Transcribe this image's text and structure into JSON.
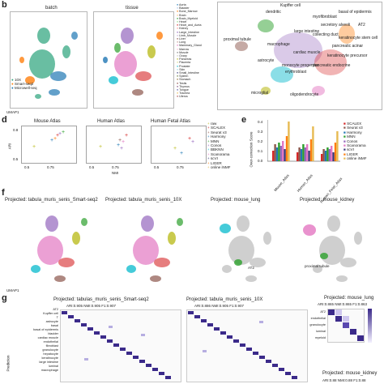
{
  "panel_b": {
    "letter": "b",
    "titles": [
      "batch",
      "tissue"
    ],
    "batch_legend": [
      "10X",
      "Smart-seq2",
      "Microwell-seq"
    ],
    "tissue_legend": [
      "Aorta",
      "Bladder",
      "Bone_Marrow",
      "Brain",
      "Brain_Myeloid",
      "Heart",
      "Heart_and_Aorta",
      "Kidney",
      "Large_Intestine",
      "Limb_Muscle",
      "Liver",
      "Lung",
      "Mammary_Gland",
      "Marrow",
      "Muscle",
      "Ovary",
      "Pancreas",
      "Placenta",
      "Prostate",
      "Skin",
      "Small_Intestine",
      "Spleen",
      "Stomach",
      "Testis",
      "Thymus",
      "Tongue",
      "Trachea",
      "Uterus"
    ],
    "axis": "UMAP1",
    "axis2": "UMAP2"
  },
  "panel_c_labels": [
    "Kupffer cell",
    "dendritic",
    "myofibroblast",
    "basal of epidermis",
    "secretory alveoli",
    "AT2",
    "large intestine",
    "keratinocyte stem cell",
    "proximal tubule",
    "collecting duct",
    "macrophage",
    "pancreatic acinar",
    "cardiac muscle",
    "astrocyte",
    "keratinocyte precursor",
    "monocyte progenitor",
    "pancreatic endocrine",
    "erythroblast",
    "microglial",
    "oligodendrocyte"
  ],
  "panel_d": {
    "letter": "d",
    "titles": [
      "Mouse Atlas",
      "Human Atlas",
      "Human Fetal Atlas"
    ],
    "ylabel": "ARI",
    "xlabel": "NMI",
    "yticks": [
      "0.8",
      "0.5"
    ],
    "xticks": [
      "0.5",
      "0.75"
    ],
    "legend": [
      "raw",
      "SCALEX",
      "Seurat v3",
      "Harmony",
      "MNN",
      "Conos",
      "BBKNN",
      "Scanorama",
      "scVI",
      "LIGER",
      "online iNMF"
    ]
  },
  "panel_e": {
    "letter": "e",
    "ylabel": "Over-correction Score",
    "yticks": [
      "0.4",
      "0.3",
      "0.2",
      "0.1",
      "0.0"
    ],
    "legend": [
      "SCALEX",
      "Seurat v3",
      "Harmony",
      "MNN",
      "Conos",
      "Scanorama",
      "scVI",
      "LIGER",
      "online iNMF"
    ],
    "categories": [
      "Mouse_Atlas",
      "Human_Atlas",
      "Human_Fetal_Atlas"
    ]
  },
  "panel_f": {
    "letter": "f",
    "titles": [
      "Projected: tabula_muris_senis_Smart-seq2",
      "Projected: tabula_muris_senis_10X",
      "Projected: mouse_lung",
      "Projected: mouse_kidney"
    ],
    "annotations": [
      "AT2",
      "proximal tubule"
    ],
    "axis": "UMAP1",
    "axis2": "UMAP2"
  },
  "panel_g": {
    "letter": "g",
    "titles": [
      "Projected: tabulas_muris_senis_Smart-seq2",
      "Projected: tabula_muris_senis_10X",
      "Projected: mouse_lung",
      "Projected: mouse_kidney"
    ],
    "metrics": [
      "ARI:0.905  NMI:0.905  F1:0.907",
      "ARI:0.886  NMI:0.905  F1:0.907",
      "ARI:0.865  NMI:0.865  F1:0.863",
      "ARI:0.88  NMI:0.88  F1:0.88"
    ],
    "row_labels": [
      "AT2",
      "Kupffer cell",
      "T",
      "astrocyte",
      "basal",
      "basal of epidermis",
      "bladder",
      "cardiac muscle",
      "endothelial",
      "fibroblast",
      "granulocyte",
      "hepatocyte",
      "keratinocyte",
      "large intestine",
      "luminal",
      "macrophage"
    ],
    "lung_rows": [
      "AT2",
      "endothelial",
      "granulocyte",
      "luminal",
      "myeloid"
    ],
    "ylabel": "Prediction"
  },
  "colors": {
    "grey": "#cfcfcf",
    "heat": "#3b2a8a"
  }
}
